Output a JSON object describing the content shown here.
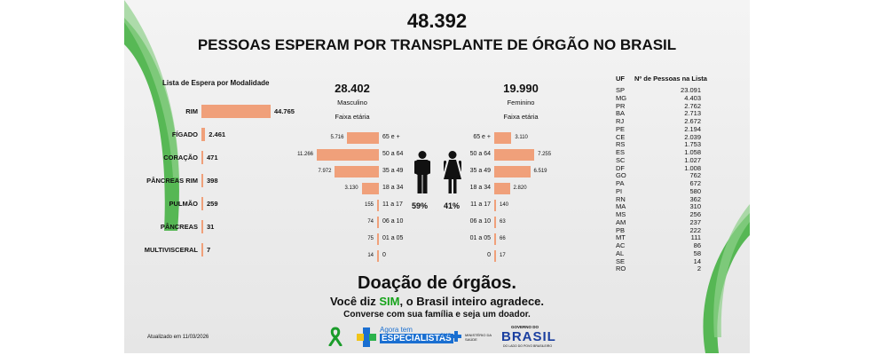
{
  "header": {
    "total": "48.392",
    "title": "PESSOAS ESPERAM POR TRANSPLANTE DE ÓRGÃO NO BRASIL"
  },
  "colors": {
    "bar": "#f0a07a",
    "green": "#16a31a",
    "panel": "#eeeeee"
  },
  "organ_section": {
    "title": "Lista de Espera por Modalidade",
    "rows": [
      {
        "label": "RIM",
        "value": "44.765"
      },
      {
        "label": "FÍGADO",
        "value": "2.461"
      },
      {
        "label": "CORAÇÃO",
        "value": "471"
      },
      {
        "label": "PÂNCREAS RIM",
        "value": "398"
      },
      {
        "label": "PULMÃO",
        "value": "259"
      },
      {
        "label": "PÂNCREAS",
        "value": "31"
      },
      {
        "label": "MULTIVISCERAL",
        "value": "7"
      }
    ]
  },
  "male": {
    "total": "28.402",
    "label": "Masculino",
    "age_label": "Faixa etária",
    "percent": "59%"
  },
  "female": {
    "total": "19.990",
    "label": "Feminino",
    "age_label": "Faixa etária",
    "percent": "41%"
  },
  "age_rows": [
    {
      "age": "65 e +",
      "male": "5.716",
      "female": "3.110"
    },
    {
      "age": "50 a 64",
      "male": "11.266",
      "female": "7.255"
    },
    {
      "age": "35 a 49",
      "male": "7.972",
      "female": "6.519"
    },
    {
      "age": "18 a 34",
      "male": "3.130",
      "female": "2.820"
    },
    {
      "age": "11 a 17",
      "male": "155",
      "female": "140"
    },
    {
      "age": "06 a 10",
      "male": "74",
      "female": "63"
    },
    {
      "age": "01 a 05",
      "male": "75",
      "female": "66"
    },
    {
      "age": "0",
      "male": "14",
      "female": "17"
    }
  ],
  "uf_table": {
    "col_uf": "UF",
    "col_count": "Nº de Pessoas na Lista",
    "rows": [
      {
        "uf": "SP",
        "value": "23.091"
      },
      {
        "uf": "MG",
        "value": "4.403"
      },
      {
        "uf": "PR",
        "value": "2.762"
      },
      {
        "uf": "BA",
        "value": "2.713"
      },
      {
        "uf": "RJ",
        "value": "2.672"
      },
      {
        "uf": "PE",
        "value": "2.194"
      },
      {
        "uf": "CE",
        "value": "2.039"
      },
      {
        "uf": "RS",
        "value": "1.753"
      },
      {
        "uf": "ES",
        "value": "1.058"
      },
      {
        "uf": "SC",
        "value": "1.027"
      },
      {
        "uf": "DF",
        "value": "1.008"
      },
      {
        "uf": "GO",
        "value": "762"
      },
      {
        "uf": "PA",
        "value": "672"
      },
      {
        "uf": "PI",
        "value": "580"
      },
      {
        "uf": "RN",
        "value": "362"
      },
      {
        "uf": "MA",
        "value": "310"
      },
      {
        "uf": "MS",
        "value": "256"
      },
      {
        "uf": "AM",
        "value": "237"
      },
      {
        "uf": "PB",
        "value": "222"
      },
      {
        "uf": "MT",
        "value": "111"
      },
      {
        "uf": "AC",
        "value": "86"
      },
      {
        "uf": "AL",
        "value": "58"
      },
      {
        "uf": "SE",
        "value": "14"
      },
      {
        "uf": "RO",
        "value": "2"
      }
    ]
  },
  "footer": {
    "headline": "Doação de órgãos.",
    "line1_a": "Você diz ",
    "line1_sim": "SIM",
    "line1_b": ", o Brasil inteiro agradece.",
    "line2": "Converse com sua família e seja um doador.",
    "updated": "Atualizado em 11/03/2026",
    "logo_agora": "Agora tem",
    "logo_especialistas": "ESPECIALISTAS",
    "logo_sus": "SUS",
    "logo_ministerio": "MINISTÉRIO DA SAÚDE",
    "logo_governo": "GOVERNO DO",
    "logo_brasil": "BRASIL",
    "logo_tagline": "DO LADO DO POVO BRASILEIRO"
  },
  "chart_data": [
    {
      "type": "bar",
      "title": "Lista de Espera por Modalidade",
      "categories": [
        "RIM",
        "FÍGADO",
        "CORAÇÃO",
        "PÂNCREAS RIM",
        "PULMÃO",
        "PÂNCREAS",
        "MULTIVISCERAL"
      ],
      "values": [
        44765,
        2461,
        471,
        398,
        259,
        31,
        7
      ],
      "orientation": "horizontal"
    },
    {
      "type": "bar",
      "title": "Faixa etária",
      "categories": [
        "65 e +",
        "50 a 64",
        "35 a 49",
        "18 a 34",
        "11 a 17",
        "06 a 10",
        "01 a 05",
        "0"
      ],
      "series": [
        {
          "name": "Masculino",
          "values": [
            5716,
            11266,
            7972,
            3130,
            155,
            74,
            75,
            14
          ]
        },
        {
          "name": "Feminino",
          "values": [
            3110,
            7255,
            6519,
            2820,
            140,
            63,
            66,
            17
          ]
        }
      ],
      "orientation": "horizontal-butterfly"
    }
  ]
}
